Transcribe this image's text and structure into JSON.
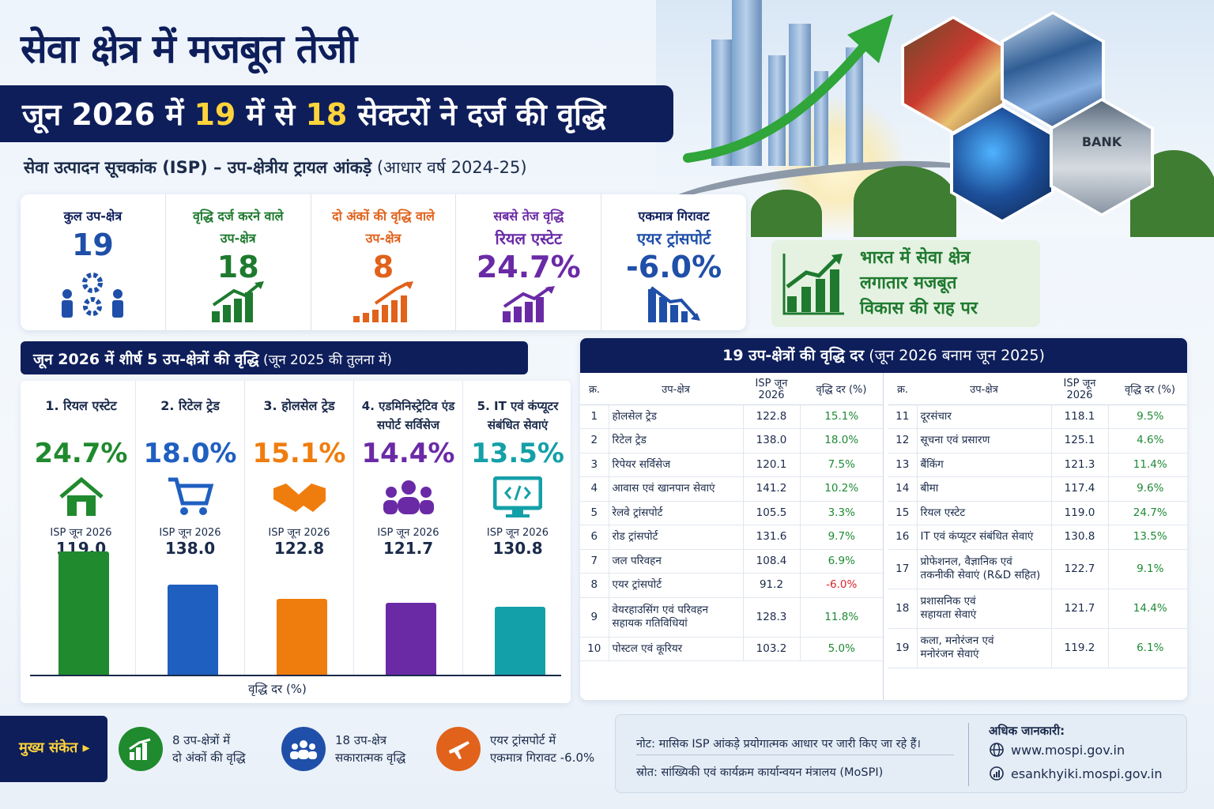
{
  "header": {
    "title": "सेवा क्षेत्र में मजबूत तेजी",
    "banner_pre": "जून 2026 में ",
    "banner_n1": "19",
    "banner_mid": " में से ",
    "banner_n2": "18",
    "banner_post": " सेक्टरों ने दर्ज की वृद्धि",
    "subtitle_bold": "सेवा उत्पादन सूचकांक (ISP) – उप-क्षेत्रीय ट्रायल आंकड़े",
    "subtitle_light": " (आधार वर्ष 2024-25)",
    "bank_sign": "BANK"
  },
  "kpis": [
    {
      "label1": "कुल उप-क्षेत्र",
      "label2": "",
      "value": "19",
      "color": "#1f4fa8"
    },
    {
      "label1": "वृद्धि दर्ज करने वाले",
      "label2": "उप-क्षेत्र",
      "value": "18",
      "color": "#1e7a2e"
    },
    {
      "label1": "दो अंकों की वृद्धि वाले",
      "label2": "उप-क्षेत्र",
      "value": "8",
      "color": "#e0621b"
    },
    {
      "label1": "सबसे तेज वृद्धि",
      "label2": "रियल एस्टेट",
      "value": "24.7%",
      "color": "#6a2aa6"
    },
    {
      "label1": "एकमात्र गिरावट",
      "label2": "एयर ट्रांसपोर्ट",
      "value": "-6.0%",
      "color": "#1f4fa8"
    }
  ],
  "side_note": {
    "line1": "भारत में सेवा क्षेत्र",
    "line2": "लगातार मजबूत",
    "line3": "विकास की राह पर"
  },
  "top5": {
    "heading_bold": "जून 2026 में शीर्ष 5 उप-क्षेत्रों की वृद्धि",
    "heading_light": " (जून 2025 की तुलना में)",
    "isp_label": "ISP जून 2026",
    "xlabel": "वृद्धि दर (%)"
  },
  "chart_data": {
    "type": "bar",
    "categories": [
      "1. रियल एस्टेट",
      "2. रिटेल ट्रेड",
      "3. होलसेल ट्रेड",
      "4. एडमिनिस्ट्रेटिव एंड सपोर्ट सर्विसेज",
      "5. IT एवं कंप्यूटर संबंधित सेवाएं"
    ],
    "growth_labels": [
      "24.7%",
      "18.0%",
      "15.1%",
      "14.4%",
      "13.5%"
    ],
    "values": [
      24.7,
      18.0,
      15.1,
      14.4,
      13.5
    ],
    "isp_values": [
      "119.0",
      "138.0",
      "122.8",
      "121.7",
      "130.8"
    ],
    "colors": [
      "#1f8a2e",
      "#1f5fc0",
      "#ef7d0e",
      "#6a2aa6",
      "#14a0a8"
    ],
    "xlabel": "वृद्धि दर (%)",
    "ylabel": ""
  },
  "table": {
    "heading_bold": "19 उप-क्षेत्रों की वृद्धि दर",
    "heading_light": " (जून 2026 बनाम जून 2025)",
    "cols": [
      "क्र.",
      "उप-क्षेत्र",
      "ISP जून 2026",
      "वृद्धि दर (%)"
    ],
    "left": [
      {
        "sn": "1",
        "name": "होलसेल ट्रेड",
        "name2": "",
        "isp": "122.8",
        "growth": "15.1%"
      },
      {
        "sn": "2",
        "name": "रिटेल ट्रेड",
        "name2": "",
        "isp": "138.0",
        "growth": "18.0%"
      },
      {
        "sn": "3",
        "name": "रिपेयर सर्विसेज",
        "name2": "",
        "isp": "120.1",
        "growth": "7.5%"
      },
      {
        "sn": "4",
        "name": "आवास एवं खानपान सेवाएं",
        "name2": "",
        "isp": "141.2",
        "growth": "10.2%"
      },
      {
        "sn": "5",
        "name": "रेलवे ट्रांसपोर्ट",
        "name2": "",
        "isp": "105.5",
        "growth": "3.3%"
      },
      {
        "sn": "6",
        "name": "रोड ट्रांसपोर्ट",
        "name2": "",
        "isp": "131.6",
        "growth": "9.7%"
      },
      {
        "sn": "7",
        "name": "जल परिवहन",
        "name2": "",
        "isp": "108.4",
        "growth": "6.9%"
      },
      {
        "sn": "8",
        "name": "एयर ट्रांसपोर्ट",
        "name2": "",
        "isp": "91.2",
        "growth": "-6.0%"
      },
      {
        "sn": "9",
        "name": "वेयरहाउसिंग एवं परिवहन",
        "name2": "सहायक गतिविधियां",
        "isp": "128.3",
        "growth": "11.8%"
      },
      {
        "sn": "10",
        "name": "पोस्टल एवं कूरियर",
        "name2": "",
        "isp": "103.2",
        "growth": "5.0%"
      }
    ],
    "right": [
      {
        "sn": "11",
        "name": "दूरसंचार",
        "name2": "",
        "isp": "118.1",
        "growth": "9.5%"
      },
      {
        "sn": "12",
        "name": "सूचना एवं प्रसारण",
        "name2": "",
        "isp": "125.1",
        "growth": "4.6%"
      },
      {
        "sn": "13",
        "name": "बैंकिंग",
        "name2": "",
        "isp": "121.3",
        "growth": "11.4%"
      },
      {
        "sn": "14",
        "name": "बीमा",
        "name2": "",
        "isp": "117.4",
        "growth": "9.6%"
      },
      {
        "sn": "15",
        "name": "रियल एस्टेट",
        "name2": "",
        "isp": "119.0",
        "growth": "24.7%"
      },
      {
        "sn": "16",
        "name": "IT एवं कंप्यूटर संबंधित सेवाएं",
        "name2": "",
        "isp": "130.8",
        "growth": "13.5%"
      },
      {
        "sn": "17",
        "name": "प्रोफेशनल, वैज्ञानिक एवं",
        "name2": "तकनीकी सेवाएं (R&D सहित)",
        "isp": "122.7",
        "growth": "9.1%"
      },
      {
        "sn": "18",
        "name": "प्रशासनिक एवं",
        "name2": "सहायता सेवाएं",
        "isp": "121.7",
        "growth": "14.4%"
      },
      {
        "sn": "19",
        "name": "कला, मनोरंजन एवं",
        "name2": "मनोरंजन सेवाएं",
        "isp": "119.2",
        "growth": "6.1%"
      }
    ]
  },
  "footer": {
    "key_label": "मुख्य संकेत ▸",
    "items": [
      {
        "l1": "8 उप-क्षेत्रों में",
        "l2": "दो अंकों की वृद्धि",
        "color": "#1f8a2e",
        "icon": "bar-chart-icon"
      },
      {
        "l1": "18 उप-क्षेत्र",
        "l2": "सकारात्मक वृद्धि",
        "color": "#1f4fa8",
        "icon": "people-icon"
      },
      {
        "l1": "एयर ट्रांसपोर्ट में",
        "l2": "एकमात्र गिरावट -6.0%",
        "color": "#e0621b",
        "icon": "airplane-icon"
      }
    ],
    "note": "नोट: मासिक ISP आंकड़े प्रयोगात्मक आधार पर जारी किए जा रहे हैं।",
    "source": "स्रोत: सांख्यिकी एवं कार्यक्रम कार्यान्वयन मंत्रालय (MoSPI)",
    "more_info": "अधिक जानकारी:",
    "link1": "www.mospi.gov.in",
    "link2": "esankhyiki.mospi.gov.in"
  }
}
